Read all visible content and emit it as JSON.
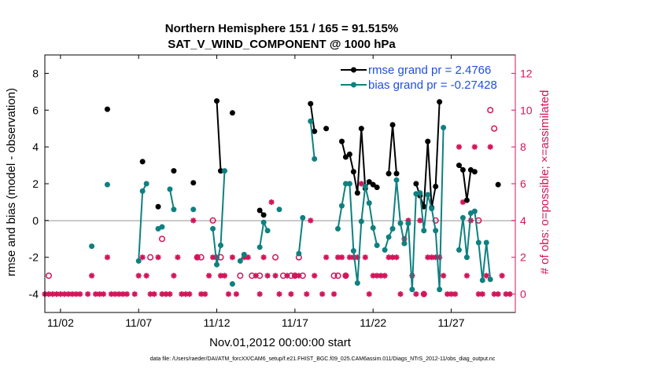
{
  "chart_data": {
    "type": "scatter",
    "title": "Northern Hemisphere 151 / 165 = 91.515%",
    "subtitle": "SAT_V_WIND_COMPONENT @ 1000 hPa",
    "xlabel": "Nov.01,2012 00:00:00 start",
    "ylabel_left": "rmse and bias (model - observation)",
    "ylabel_right": "# of obs: o=possible; ×=assimilated",
    "footer": "data file: /Users/raeder/DAI/ATM_forcXX/CAM6_setup/f.e21.FHIST_BGC.f09_025.CAM6assim.011/Diags_NTrS_2012-11/obs_diag_output.nc",
    "x_ticks": [
      {
        "value": 2,
        "label": "11/02"
      },
      {
        "value": 7,
        "label": "11/07"
      },
      {
        "value": 12,
        "label": "11/12"
      },
      {
        "value": 17,
        "label": "11/17"
      },
      {
        "value": 22,
        "label": "11/22"
      },
      {
        "value": 27,
        "label": "11/27"
      }
    ],
    "xlim": [
      1,
      31.1
    ],
    "ylim_left": [
      -5,
      9
    ],
    "ylim_right": [
      -1,
      13
    ],
    "yticks_left": [
      "-4",
      "-2",
      "0",
      "2",
      "4",
      "6",
      "8"
    ],
    "yticks_right": [
      "0",
      "2",
      "4",
      "6",
      "8",
      "10",
      "12"
    ],
    "colors": {
      "rmse": "#000000",
      "bias": "#0f8080",
      "obs": "#d4145a",
      "legend_text": "#1f4fe0",
      "zero_line": "#b8b8b8",
      "right_axis": "#d4145a"
    },
    "legend": [
      {
        "name": "rmse grand pr = 2.4766"
      },
      {
        "name": "bias grand pr = -0.27428"
      }
    ],
    "series": [
      {
        "name": "rmse",
        "segments": [
          [
            [
              5.0,
              6.05
            ]
          ],
          [
            [
              7.25,
              3.2
            ]
          ],
          [
            [
              8.25,
              0.75
            ]
          ],
          [
            [
              9.25,
              2.7
            ]
          ],
          [
            [
              10.5,
              2.05
            ]
          ],
          [
            [
              12.0,
              6.5
            ],
            [
              12.25,
              2.7
            ]
          ],
          [
            [
              13.0,
              5.85
            ]
          ],
          [
            [
              14.75,
              0.55
            ],
            [
              15.0,
              0.3
            ]
          ],
          [
            [
              18.0,
              6.35
            ],
            [
              18.25,
              4.85
            ]
          ],
          [
            [
              19.0,
              5.0
            ]
          ],
          [
            [
              20.0,
              4.3
            ],
            [
              20.25,
              3.45
            ],
            [
              20.5,
              3.6
            ],
            [
              20.75,
              2.65
            ],
            [
              21.0,
              1.5
            ],
            [
              21.25,
              5.0
            ],
            [
              21.5,
              1.75
            ],
            [
              21.75,
              2.1
            ],
            [
              22.0,
              1.95
            ],
            [
              22.25,
              1.8
            ]
          ],
          [
            [
              23.0,
              2.55
            ],
            [
              23.25,
              5.2
            ],
            [
              23.5,
              2.55
            ]
          ],
          [
            [
              24.75,
              2.0
            ],
            [
              25.0,
              1.35
            ],
            [
              25.25,
              0.75
            ],
            [
              25.5,
              4.3
            ],
            [
              25.75,
              0.7
            ],
            [
              26.0,
              1.85
            ],
            [
              26.25,
              6.45
            ]
          ],
          [
            [
              27.5,
              3.0
            ],
            [
              27.75,
              2.75
            ],
            [
              28.0,
              1.1
            ],
            [
              28.25,
              2.75
            ],
            [
              28.5,
              2.65
            ]
          ],
          [
            [
              30.0,
              1.95
            ]
          ]
        ]
      },
      {
        "name": "bias",
        "segments": [
          [
            [
              4.0,
              -1.4
            ]
          ],
          [
            [
              5.0,
              1.95
            ]
          ],
          [
            [
              7.0,
              -2.2
            ],
            [
              7.25,
              1.6
            ],
            [
              7.5,
              2.0
            ]
          ],
          [
            [
              8.25,
              -0.45
            ],
            [
              8.5,
              -0.35
            ]
          ],
          [
            [
              9.0,
              1.7
            ],
            [
              9.25,
              0.6
            ]
          ],
          [
            [
              10.5,
              0.6
            ]
          ],
          [
            [
              11.75,
              -0.45
            ],
            [
              12.0,
              -2.4
            ],
            [
              12.25,
              -1.35
            ],
            [
              12.5,
              2.7
            ]
          ],
          [
            [
              13.0,
              -3.45
            ]
          ],
          [
            [
              13.5,
              -2.2
            ],
            [
              13.75,
              -1.85
            ]
          ],
          [
            [
              14.75,
              -1.45
            ],
            [
              15.0,
              -0.1
            ],
            [
              15.25,
              -0.55
            ]
          ],
          [
            [
              16.0,
              0.6
            ]
          ],
          [
            [
              17.25,
              -1.8
            ],
            [
              17.5,
              0.15
            ]
          ],
          [
            [
              18.0,
              5.4
            ],
            [
              18.25,
              3.35
            ]
          ],
          [
            [
              19.75,
              -0.45
            ],
            [
              20.0,
              0.8
            ],
            [
              20.25,
              2.0
            ],
            [
              20.5,
              2.0
            ],
            [
              20.75,
              -1.65
            ],
            [
              21.0,
              -3.4
            ],
            [
              21.25,
              -0.05
            ],
            [
              21.5,
              1.85
            ],
            [
              21.75,
              0.95
            ],
            [
              22.0,
              -0.4
            ],
            [
              22.25,
              -1.35
            ]
          ],
          [
            [
              22.75,
              -1.6
            ],
            [
              23.0,
              -0.9
            ],
            [
              23.25,
              -0.45
            ],
            [
              23.5,
              2.2
            ],
            [
              23.75,
              -0.15
            ],
            [
              24.0,
              -1.25
            ],
            [
              24.25,
              -0.15
            ],
            [
              24.5,
              -3.75
            ],
            [
              24.75,
              1.45
            ],
            [
              25.0,
              1.5
            ],
            [
              25.25,
              -0.55
            ],
            [
              25.5,
              1.4
            ],
            [
              25.75,
              0.65
            ],
            [
              26.0,
              -0.55
            ],
            [
              26.25,
              -3.75
            ],
            [
              26.5,
              5.05
            ]
          ],
          [
            [
              27.5,
              -1.6
            ],
            [
              27.75,
              0.15
            ],
            [
              28.0,
              -2.0
            ],
            [
              28.25,
              0.4
            ],
            [
              28.5,
              0.5
            ],
            [
              28.75,
              -1.2
            ],
            [
              29.0,
              -3.25
            ],
            [
              29.25,
              -1.2
            ],
            [
              29.5,
              -3.2
            ]
          ]
        ]
      }
    ],
    "assimilated_obs": [
      [
        1.0,
        0
      ],
      [
        1.25,
        0
      ],
      [
        1.5,
        0
      ],
      [
        1.75,
        0
      ],
      [
        2.0,
        0
      ],
      [
        2.25,
        0
      ],
      [
        2.5,
        0
      ],
      [
        2.75,
        0
      ],
      [
        3.0,
        0
      ],
      [
        3.25,
        0
      ],
      [
        3.75,
        0
      ],
      [
        4.0,
        1
      ],
      [
        4.25,
        0
      ],
      [
        4.5,
        0
      ],
      [
        4.75,
        0
      ],
      [
        5.0,
        2
      ],
      [
        5.25,
        0
      ],
      [
        5.5,
        0
      ],
      [
        5.75,
        0
      ],
      [
        6.0,
        0
      ],
      [
        6.25,
        0
      ],
      [
        6.75,
        0
      ],
      [
        7.0,
        1
      ],
      [
        7.25,
        2
      ],
      [
        7.5,
        1
      ],
      [
        7.75,
        0
      ],
      [
        8.0,
        0
      ],
      [
        8.25,
        2
      ],
      [
        8.5,
        0
      ],
      [
        8.75,
        0
      ],
      [
        9.0,
        0
      ],
      [
        9.25,
        1
      ],
      [
        9.5,
        2
      ],
      [
        9.75,
        0
      ],
      [
        10.0,
        0
      ],
      [
        10.25,
        0
      ],
      [
        10.5,
        4
      ],
      [
        10.75,
        2
      ],
      [
        11.0,
        0
      ],
      [
        11.25,
        0
      ],
      [
        11.5,
        1
      ],
      [
        11.75,
        2
      ],
      [
        12.0,
        2
      ],
      [
        12.25,
        1
      ],
      [
        12.5,
        1
      ],
      [
        12.75,
        0
      ],
      [
        13.0,
        2
      ],
      [
        13.25,
        0
      ],
      [
        13.75,
        2
      ],
      [
        14.0,
        2
      ],
      [
        14.5,
        1
      ],
      [
        14.75,
        0
      ],
      [
        15.0,
        2
      ],
      [
        15.25,
        1
      ],
      [
        15.5,
        5
      ],
      [
        15.75,
        1
      ],
      [
        16.0,
        0
      ],
      [
        16.5,
        1
      ],
      [
        16.75,
        0
      ],
      [
        17.0,
        1
      ],
      [
        17.25,
        1
      ],
      [
        17.75,
        0
      ],
      [
        18.0,
        4
      ],
      [
        18.25,
        1
      ],
      [
        18.75,
        0
      ],
      [
        19.0,
        2
      ],
      [
        19.5,
        0
      ],
      [
        19.75,
        2
      ],
      [
        20.0,
        2
      ],
      [
        20.25,
        1
      ],
      [
        20.5,
        2
      ],
      [
        20.75,
        2
      ],
      [
        21.0,
        2
      ],
      [
        21.25,
        6
      ],
      [
        21.5,
        2
      ],
      [
        21.75,
        0
      ],
      [
        22.0,
        1
      ],
      [
        22.25,
        1
      ],
      [
        22.5,
        1
      ],
      [
        22.75,
        1
      ],
      [
        23.0,
        2
      ],
      [
        23.25,
        2
      ],
      [
        23.5,
        2
      ],
      [
        23.75,
        0
      ],
      [
        24.0,
        3
      ],
      [
        24.25,
        4
      ],
      [
        24.5,
        1
      ],
      [
        24.75,
        0
      ],
      [
        25.0,
        4
      ],
      [
        25.25,
        0
      ],
      [
        25.5,
        2
      ],
      [
        25.75,
        2
      ],
      [
        26.0,
        2
      ],
      [
        26.25,
        2
      ],
      [
        26.5,
        1
      ],
      [
        26.75,
        0
      ],
      [
        27.0,
        0
      ],
      [
        27.25,
        0
      ],
      [
        27.5,
        8
      ],
      [
        27.75,
        5
      ],
      [
        28.0,
        1
      ],
      [
        28.25,
        4
      ],
      [
        28.5,
        8
      ],
      [
        28.75,
        0
      ],
      [
        29.0,
        0
      ],
      [
        29.25,
        1
      ],
      [
        29.5,
        8
      ],
      [
        29.75,
        0
      ],
      [
        30.0,
        0
      ],
      [
        30.25,
        1
      ],
      [
        30.5,
        0
      ],
      [
        30.75,
        0
      ]
    ],
    "possible_obs": [
      [
        1.25,
        1
      ],
      [
        7.75,
        2
      ],
      [
        8.5,
        3
      ],
      [
        10.75,
        2
      ],
      [
        11.0,
        2
      ],
      [
        11.75,
        4
      ],
      [
        12.25,
        2
      ],
      [
        13.5,
        1
      ],
      [
        14.25,
        1
      ],
      [
        14.75,
        1
      ],
      [
        15.75,
        2
      ],
      [
        16.25,
        1
      ],
      [
        16.75,
        1
      ],
      [
        17.0,
        1
      ],
      [
        17.25,
        2
      ],
      [
        17.5,
        1
      ],
      [
        19.5,
        1
      ],
      [
        19.75,
        1
      ],
      [
        20.25,
        1
      ],
      [
        25.25,
        0
      ],
      [
        26.0,
        4
      ],
      [
        28.75,
        4
      ],
      [
        29.5,
        10
      ],
      [
        29.75,
        9
      ]
    ]
  }
}
